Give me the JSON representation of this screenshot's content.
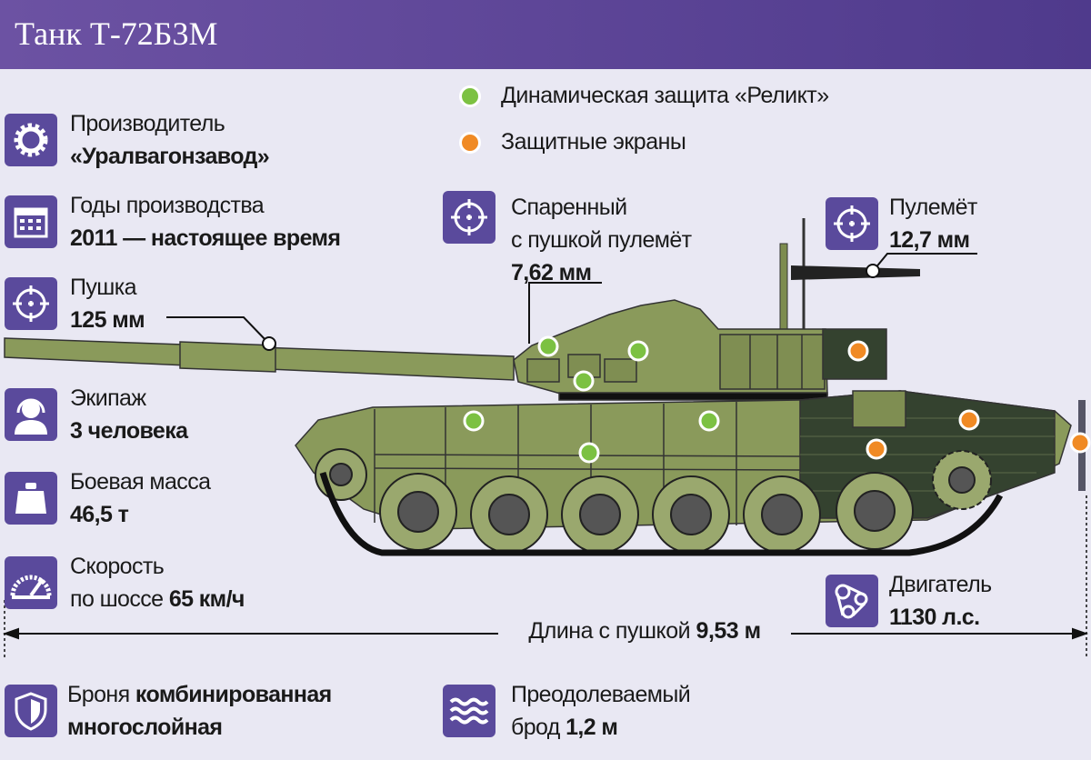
{
  "header": {
    "title": "Танк Т-72Б3М"
  },
  "colors": {
    "header": "#5e469a",
    "icon_bg": "#5a4a9c",
    "reactive_armor": "#7cc142",
    "screens": "#f08a24",
    "tank": "#8a9a5b"
  },
  "legend": [
    {
      "label": "Динамическая защита «Реликт»",
      "color": "#7cc142"
    },
    {
      "label": "Защитные экраны",
      "color": "#f08a24"
    }
  ],
  "specs": {
    "maker": {
      "icon": "gear-icon",
      "label": "Производитель",
      "value": "«Уралвагонзавод»"
    },
    "years": {
      "icon": "calendar-icon",
      "label": "Годы производства",
      "value": "2011 — настоящее время"
    },
    "gun": {
      "icon": "crosshair-icon",
      "label": "Пушка",
      "value": "125 мм"
    },
    "crew": {
      "icon": "crew-icon",
      "label": "Экипаж",
      "value": "3 человека"
    },
    "mass": {
      "icon": "weight-icon",
      "label": "Боевая масса",
      "value": "46,5 т"
    },
    "speed": {
      "icon": "speedometer-icon",
      "label": "Скорость",
      "label2": "по шоссе",
      "value": "65 км/ч"
    },
    "coax": {
      "icon": "crosshair-icon",
      "label": "Спаренный",
      "label2": "с пушкой пулемёт",
      "value": "7,62 мм"
    },
    "mg": {
      "icon": "crosshair-icon",
      "label": "Пулемёт",
      "value": "12,7 мм"
    },
    "engine": {
      "icon": "engine-belt-icon",
      "label": "Двигатель",
      "value": "1130 л.с."
    },
    "length": {
      "label": "Длина с пушкой",
      "value": "9,53 м"
    },
    "armor": {
      "icon": "shield-icon",
      "label": "Броня",
      "value": "комбинированная",
      "value2": "многослойная"
    },
    "ford": {
      "icon": "waves-icon",
      "label": "Преодолеваемый",
      "label2": "брод",
      "value": "1,2 м"
    }
  }
}
